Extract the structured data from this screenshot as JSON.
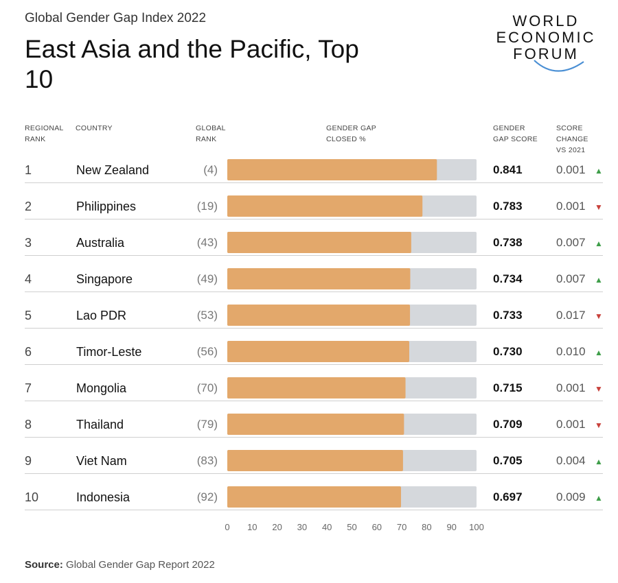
{
  "header": {
    "subtitle": "Global Gender Gap Index 2022",
    "title": "East Asia and the Pacific, Top 10",
    "logo_lines": [
      "WORLD",
      "ECONOMIC",
      "FORUM"
    ]
  },
  "columns": {
    "regional_rank": "REGIONAL\nRANK",
    "country": "COUNTRY",
    "global_rank": "GLOBAL\nRANK",
    "closed": "GENDER GAP\nCLOSED %",
    "score": "GENDER\nGAP SCORE",
    "change": "SCORE\nCHANGE\nVS 2021"
  },
  "rows": [
    {
      "rank": "1",
      "country": "New Zealand",
      "global_rank": "(4)",
      "score": "0.841",
      "change": "0.001",
      "dir": "up"
    },
    {
      "rank": "2",
      "country": "Philippines",
      "global_rank": "(19)",
      "score": "0.783",
      "change": "0.001",
      "dir": "down"
    },
    {
      "rank": "3",
      "country": "Australia",
      "global_rank": "(43)",
      "score": "0.738",
      "change": "0.007",
      "dir": "up"
    },
    {
      "rank": "4",
      "country": "Singapore",
      "global_rank": "(49)",
      "score": "0.734",
      "change": "0.007",
      "dir": "up"
    },
    {
      "rank": "5",
      "country": "Lao PDR",
      "global_rank": "(53)",
      "score": "0.733",
      "change": "0.017",
      "dir": "down"
    },
    {
      "rank": "6",
      "country": "Timor-Leste",
      "global_rank": "(56)",
      "score": "0.730",
      "change": "0.010",
      "dir": "up"
    },
    {
      "rank": "7",
      "country": "Mongolia",
      "global_rank": "(70)",
      "score": "0.715",
      "change": "0.001",
      "dir": "down"
    },
    {
      "rank": "8",
      "country": "Thailand",
      "global_rank": "(79)",
      "score": "0.709",
      "change": "0.001",
      "dir": "down"
    },
    {
      "rank": "9",
      "country": "Viet Nam",
      "global_rank": "(83)",
      "score": "0.705",
      "change": "0.004",
      "dir": "up"
    },
    {
      "rank": "10",
      "country": "Indonesia",
      "global_rank": "(92)",
      "score": "0.697",
      "change": "0.009",
      "dir": "up"
    }
  ],
  "source": {
    "label": "Source:",
    "text": "Global Gender Gap Report 2022"
  },
  "colors": {
    "bar": "#e3a86b",
    "track": "#d5d8dc",
    "up": "#3f9e4a",
    "down": "#c8413b"
  },
  "arrow_glyphs": {
    "up": "▲",
    "down": "▼"
  },
  "chart_data": {
    "type": "bar",
    "categories": [
      "New Zealand",
      "Philippines",
      "Australia",
      "Singapore",
      "Lao PDR",
      "Timor-Leste",
      "Mongolia",
      "Thailand",
      "Viet Nam",
      "Indonesia"
    ],
    "values": [
      84.1,
      78.3,
      73.8,
      73.4,
      73.3,
      73.0,
      71.5,
      70.9,
      70.5,
      69.7
    ],
    "xlim": [
      0,
      100
    ],
    "ticks": [
      "0",
      "10",
      "20",
      "30",
      "40",
      "50",
      "60",
      "70",
      "80",
      "90",
      "100"
    ],
    "grid": false
  }
}
